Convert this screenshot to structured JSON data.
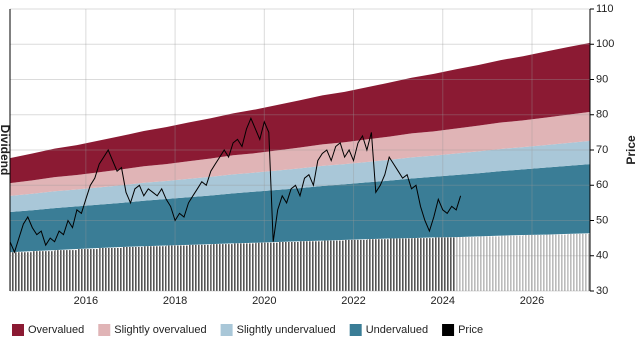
{
  "chart_data": {
    "type": "valuation-bands",
    "y_label_left": "Dividend",
    "y_label_right": "Price",
    "xlim": [
      2014.3,
      2027.3
    ],
    "xticks": [
      2016,
      2018,
      2020,
      2022,
      2024,
      2026
    ],
    "ylim": [
      30,
      110
    ],
    "yticks": [
      30,
      40,
      50,
      60,
      70,
      80,
      90,
      100,
      110
    ],
    "grid": true,
    "legend": "bottom",
    "x": [
      2014.3,
      2014.8,
      2015.3,
      2015.8,
      2016.3,
      2016.8,
      2017.3,
      2017.8,
      2018.3,
      2018.8,
      2019.3,
      2019.8,
      2020.3,
      2020.8,
      2021.3,
      2021.8,
      2022.3,
      2022.8,
      2023.3,
      2023.8,
      2024.3,
      2024.8,
      2025.3,
      2025.8,
      2026.3,
      2026.8,
      2027.3
    ],
    "dividend": {
      "values": [
        41,
        41.3,
        41.6,
        41.9,
        42.2,
        42.5,
        42.7,
        42.9,
        43.1,
        43.3,
        43.5,
        43.7,
        43.9,
        44.1,
        44.3,
        44.5,
        44.7,
        44.9,
        45,
        45.2,
        45.3,
        45.5,
        45.7,
        45.9,
        46,
        46.2,
        46.4
      ],
      "colors": [
        "#555",
        "#555",
        "#555",
        "#555",
        "#555",
        "#555",
        "#555",
        "#555",
        "#555",
        "#555",
        "#555",
        "#555",
        "#555",
        "#555",
        "#555",
        "#555",
        "#555",
        "#555",
        "#555",
        "#555",
        "#bbb",
        "#bbb",
        "#bbb",
        "#bbb",
        "#bbb",
        "#bbb",
        "#bbb"
      ]
    },
    "series": [
      {
        "name": "Overvalued",
        "color": "#8b1a33",
        "values": [
          7.1,
          7.6,
          8.1,
          8.5,
          9,
          9.5,
          10,
          10.5,
          11,
          11.4,
          11.9,
          12.4,
          12.9,
          13.4,
          13.9,
          14.3,
          14.8,
          15.3,
          15.8,
          16.3,
          16.8,
          17.2,
          17.7,
          18.2,
          18.7,
          19.2,
          19.6
        ]
      },
      {
        "name": "Slightly overvalued",
        "color": "#e0b4b6",
        "values": [
          3.6,
          3.8,
          4,
          4.1,
          4.3,
          4.5,
          4.7,
          4.8,
          5,
          5.2,
          5.4,
          5.5,
          5.7,
          5.9,
          6.1,
          6.2,
          6.4,
          6.6,
          6.8,
          6.9,
          7.1,
          7.3,
          7.5,
          7.6,
          7.8,
          8,
          8.2
        ]
      },
      {
        "name": "Slightly undervalued",
        "color": "#a9c7d8",
        "values": [
          4.6,
          4.7,
          4.8,
          4.8,
          4.9,
          5,
          5.1,
          5.1,
          5.2,
          5.3,
          5.4,
          5.4,
          5.5,
          5.6,
          5.7,
          5.7,
          5.8,
          5.9,
          6,
          6,
          6.1,
          6.2,
          6.3,
          6.3,
          6.4,
          6.5,
          6.6
        ]
      },
      {
        "name": "Undervalued",
        "color": "#3a7d96",
        "values": [
          11.4,
          11.6,
          11.9,
          12.1,
          12.3,
          12.5,
          12.9,
          13.2,
          13.5,
          13.8,
          14.2,
          14.5,
          14.8,
          15.1,
          15.5,
          15.8,
          16.1,
          16.4,
          16.9,
          17.2,
          17.6,
          17.9,
          18.3,
          18.6,
          19,
          19.3,
          19.6
        ]
      },
      {
        "name": "Price",
        "color": "#000000",
        "x": [
          2014.3,
          2014.4,
          2014.5,
          2014.6,
          2014.7,
          2014.8,
          2014.9,
          2015.0,
          2015.1,
          2015.2,
          2015.3,
          2015.4,
          2015.5,
          2015.6,
          2015.7,
          2015.8,
          2015.9,
          2016.0,
          2016.1,
          2016.2,
          2016.3,
          2016.4,
          2016.5,
          2016.6,
          2016.7,
          2016.8,
          2016.9,
          2017.0,
          2017.1,
          2017.2,
          2017.3,
          2017.4,
          2017.5,
          2017.6,
          2017.7,
          2017.8,
          2017.9,
          2018.0,
          2018.1,
          2018.2,
          2018.3,
          2018.4,
          2018.5,
          2018.6,
          2018.7,
          2018.8,
          2018.9,
          2019.0,
          2019.1,
          2019.2,
          2019.3,
          2019.4,
          2019.5,
          2019.6,
          2019.7,
          2019.8,
          2019.9,
          2020.0,
          2020.1,
          2020.2,
          2020.3,
          2020.4,
          2020.5,
          2020.6,
          2020.7,
          2020.8,
          2020.9,
          2021.0,
          2021.1,
          2021.2,
          2021.3,
          2021.4,
          2021.5,
          2021.6,
          2021.7,
          2021.8,
          2021.9,
          2022.0,
          2022.1,
          2022.2,
          2022.3,
          2022.4,
          2022.5,
          2022.6,
          2022.7,
          2022.8,
          2022.9,
          2023.0,
          2023.1,
          2023.2,
          2023.3,
          2023.4,
          2023.5,
          2023.6,
          2023.7,
          2023.8,
          2023.9,
          2024.0,
          2024.1,
          2024.2,
          2024.3,
          2024.4
        ],
        "values": [
          44,
          41,
          45,
          49,
          51,
          48,
          46,
          47,
          43,
          45,
          44,
          47,
          46,
          50,
          48,
          53,
          52,
          56,
          60,
          62,
          66,
          68,
          70,
          67,
          64,
          65,
          58,
          55,
          59,
          60,
          57,
          59,
          58,
          57,
          59,
          56,
          54,
          50,
          52,
          51,
          55,
          57,
          59,
          61,
          60,
          64,
          66,
          68,
          70,
          68,
          72,
          73,
          71,
          76,
          79,
          76,
          73,
          78,
          75,
          44,
          53,
          57,
          55,
          59,
          60,
          57,
          62,
          63,
          60,
          67,
          69,
          70,
          67,
          71,
          72,
          68,
          70,
          67,
          72,
          74,
          70,
          75,
          58,
          60,
          63,
          68,
          66,
          64,
          62,
          63,
          59,
          60,
          54,
          50,
          47,
          51,
          56,
          53,
          52,
          54,
          53,
          57
        ]
      }
    ]
  }
}
